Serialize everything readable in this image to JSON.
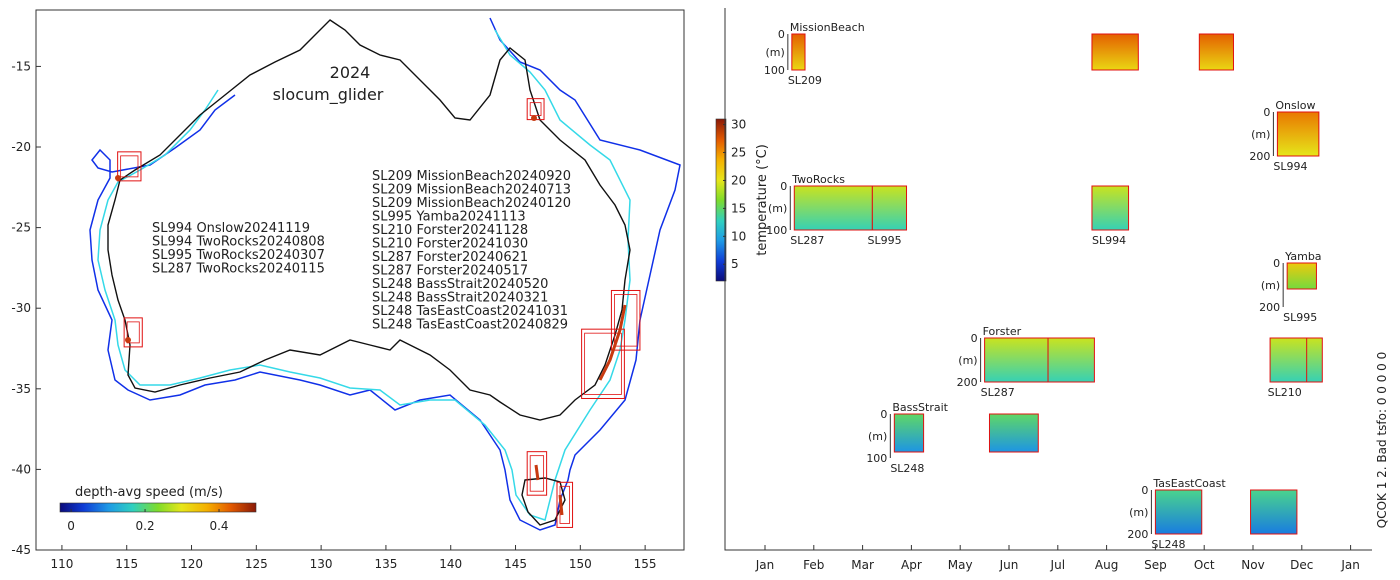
{
  "chart_data": [
    {
      "type": "scatter",
      "title": "2024",
      "subtitle": "slocum_glider",
      "x_ticks": [
        110,
        115,
        120,
        125,
        130,
        135,
        140,
        145,
        150,
        155
      ],
      "y_ticks": [
        -15,
        -20,
        -25,
        -30,
        -35,
        -40,
        -45
      ],
      "xlim": [
        108,
        158
      ],
      "ylim": [
        -45,
        -11.5
      ],
      "colorbar": {
        "label": "depth-avg speed (m/s)",
        "ticks": [
          0,
          0.2,
          0.4
        ],
        "range": [
          -0.03,
          0.5
        ]
      },
      "deployment_lists": {
        "west": [
          "SL994 Onslow20241119",
          "SL994 TwoRocks20240808",
          "SL995 TwoRocks20240307",
          "SL287 TwoRocks20240115"
        ],
        "east": [
          "SL209 MissionBeach20240920",
          "SL209 MissionBeach20240713",
          "SL209 MissionBeach20240120",
          "SL995 Yamba20241113",
          "SL210 Forster20241128",
          "SL210 Forster20241030",
          "SL287 Forster20240621",
          "SL287 Forster20240517",
          "SL248 BassStrait20240520",
          "SL248 BassStrait20240321",
          "SL248 TasEastCoast20241031",
          "SL248 TasEastCoast20240829"
        ]
      },
      "deployment_regions": [
        {
          "site": "MissionBeach",
          "lon": [
            145.9,
            147.2
          ],
          "lat": [
            -18.3,
            -17.0
          ]
        },
        {
          "site": "Onslow",
          "lon": [
            114.3,
            116.1
          ],
          "lat": [
            -22.1,
            -20.3
          ]
        },
        {
          "site": "TwoRocks",
          "lon": [
            114.8,
            116.2
          ],
          "lat": [
            -32.4,
            -30.6
          ]
        },
        {
          "site": "Yamba",
          "lon": [
            152.4,
            154.6
          ],
          "lat": [
            -32.6,
            -28.9
          ]
        },
        {
          "site": "Forster",
          "lon": [
            150.1,
            153.4
          ],
          "lat": [
            -35.6,
            -31.3
          ]
        },
        {
          "site": "BassStrait",
          "lon": [
            145.9,
            147.4
          ],
          "lat": [
            -41.6,
            -38.9
          ]
        },
        {
          "site": "TasEastCoast",
          "lon": [
            148.2,
            149.4
          ],
          "lat": [
            -43.6,
            -40.8
          ]
        }
      ]
    },
    {
      "type": "heatmap",
      "colorbar": {
        "label": "temperature (°C)",
        "ticks": [
          5,
          10,
          15,
          20,
          25,
          30
        ],
        "range": [
          2,
          31
        ]
      },
      "months": [
        "Jan",
        "Feb",
        "Mar",
        "Apr",
        "May",
        "Jun",
        "Jul",
        "Aug",
        "Sep",
        "Oct",
        "Nov",
        "Dec",
        "Jan"
      ],
      "side_label": "QCOK 1  2. Bad tsfo: 0  0  0  0  0",
      "sites": [
        {
          "name": "MissionBeach",
          "glider": "SL209",
          "depth_ticks": [
            "0",
            "100"
          ],
          "unit": "(m)",
          "segments": [
            [
              0.55,
              0.82
            ],
            [
              6.7,
              7.65
            ],
            [
              8.9,
              9.6
            ]
          ],
          "temp": 27
        },
        {
          "name": "Onslow",
          "glider": "SL994",
          "depth_ticks": [
            "0",
            "200"
          ],
          "unit": "(m)",
          "segments": [
            [
              10.5,
              11.35
            ]
          ],
          "temp": 26
        },
        {
          "name": "TwoRocks",
          "glider": "SL287",
          "depth_ticks": [
            "0",
            "100"
          ],
          "unit": "(m)",
          "segments": [
            [
              0.6,
              2.2
            ],
            [
              2.2,
              2.9
            ],
            [
              6.7,
              7.45
            ]
          ],
          "temp": 19,
          "second_glider": {
            "name": "SL995",
            "at": 2.45
          },
          "third_glider": {
            "name": "SL994",
            "at": 7.05
          }
        },
        {
          "name": "Yamba",
          "glider": "SL995",
          "depth_ticks": [
            "0",
            "200"
          ],
          "unit": "(m)",
          "segments": [
            [
              10.7,
              11.3
            ]
          ],
          "temp": 22
        },
        {
          "name": "Forster",
          "glider": "SL287",
          "depth_ticks": [
            "0",
            "200"
          ],
          "unit": "(m)",
          "segments": [
            [
              4.5,
              5.8
            ],
            [
              5.8,
              6.75
            ],
            [
              10.35,
              11.25
            ],
            [
              11.1,
              11.42
            ]
          ],
          "temp": 19,
          "second_glider": {
            "name": "SL210",
            "at": 10.65
          }
        },
        {
          "name": "BassStrait",
          "glider": "SL248",
          "depth_ticks": [
            "0",
            "100"
          ],
          "unit": "(m)",
          "segments": [
            [
              2.65,
              3.25
            ],
            [
              4.6,
              5.6
            ]
          ],
          "temp": 15
        },
        {
          "name": "TasEastCoast",
          "glider": "SL248",
          "depth_ticks": [
            "0",
            "200"
          ],
          "unit": "(m)",
          "segments": [
            [
              8.0,
              8.95
            ],
            [
              9.95,
              10.9
            ]
          ],
          "temp": 14
        }
      ]
    }
  ]
}
